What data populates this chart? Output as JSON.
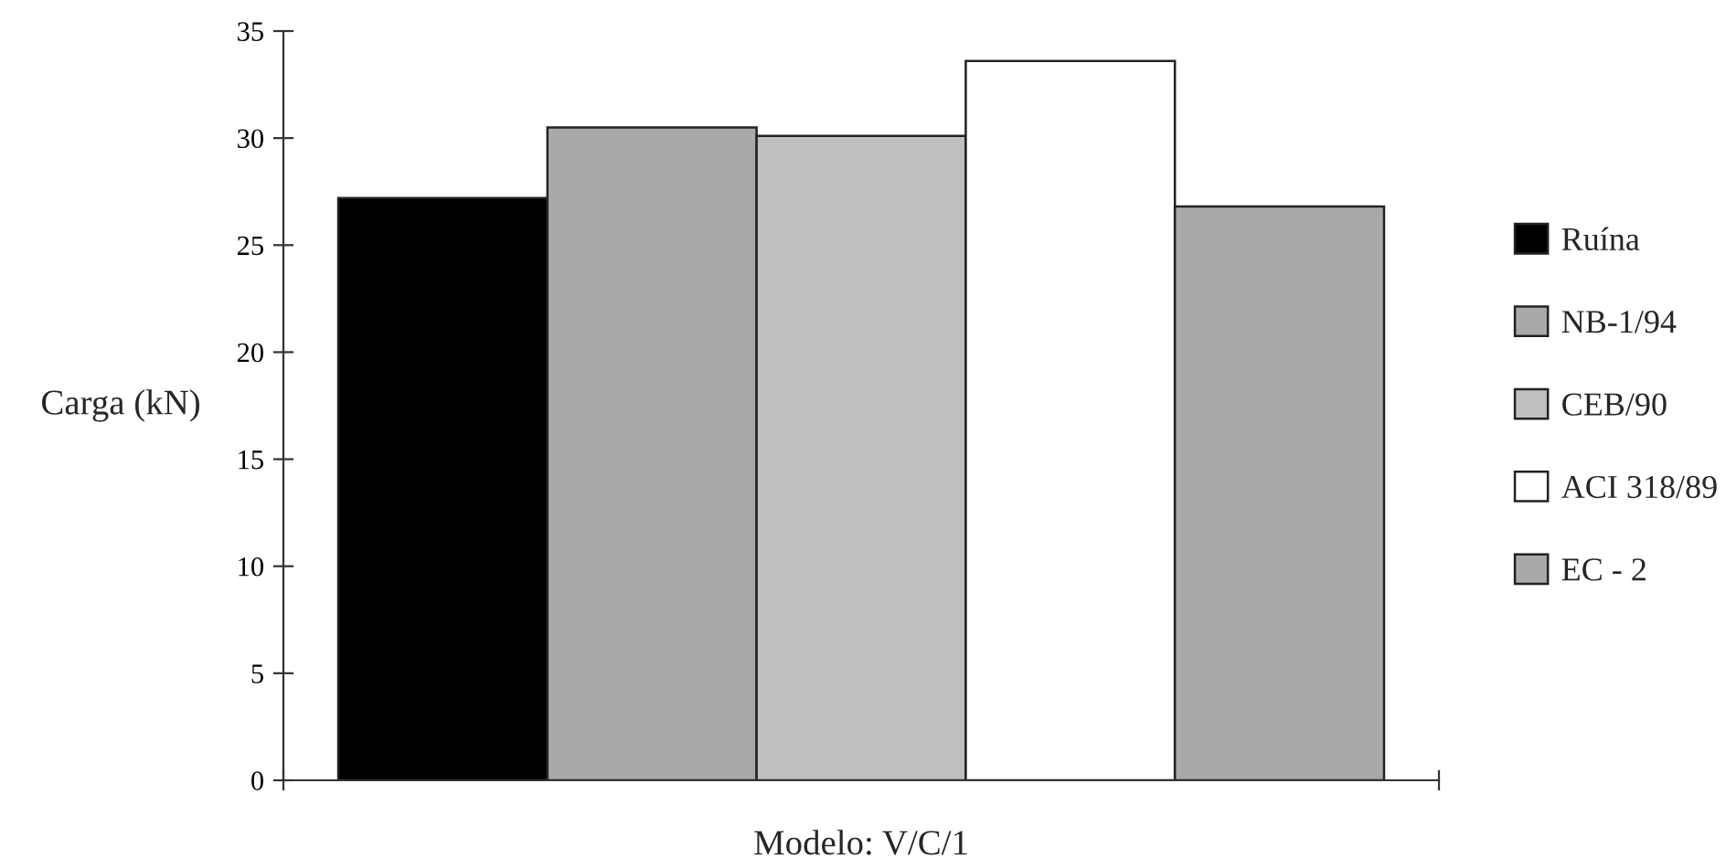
{
  "chart_data": {
    "type": "bar",
    "xlabel": "Modelo: V/C/1",
    "ylabel": "Carga (kN)",
    "categories": [
      null
    ],
    "series": [
      {
        "name": "Ruína",
        "color": "#000000",
        "values": [
          27.2
        ]
      },
      {
        "name": "NB-1/94",
        "color": "#a9a9a9",
        "values": [
          30.5
        ]
      },
      {
        "name": "CEB/90",
        "color": "#bfbfbf",
        "values": [
          30.1
        ]
      },
      {
        "name": "ACI 318/89",
        "color": "#ffffff",
        "values": [
          33.6
        ]
      },
      {
        "name": "EC - 2",
        "color": "#a9a9a9",
        "values": [
          26.8
        ]
      }
    ],
    "ylim": [
      0,
      35
    ],
    "yticks": [
      0,
      5,
      10,
      15,
      20,
      25,
      30,
      35
    ],
    "grid": false,
    "legend": "right"
  }
}
